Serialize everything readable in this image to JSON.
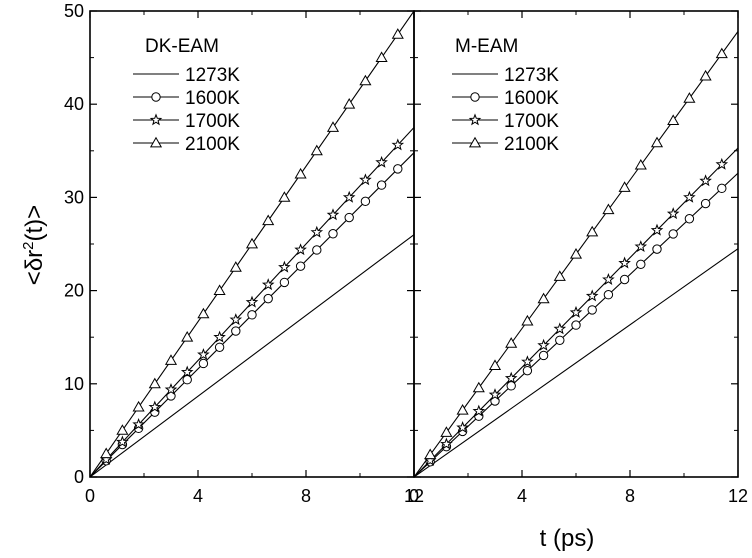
{
  "chart_data": {
    "type": "line",
    "ylabel": "<δr",
    "ylabel_sup": "2",
    "ylabel_tail": "(t)>",
    "xlabel": "t (ps)",
    "ylim": [
      0,
      50
    ],
    "y_ticks": [
      0,
      10,
      20,
      30,
      40,
      50
    ],
    "panels": [
      {
        "title": "DK-EAM",
        "xlim": [
          0,
          12
        ],
        "x_ticks": [
          0,
          4,
          8,
          12
        ],
        "series": [
          {
            "name": "1273K",
            "marker": "none",
            "x": [
              0,
              12
            ],
            "y": [
              0,
              26.0
            ]
          },
          {
            "name": "1600K",
            "marker": "circle",
            "x": [
              0,
              12
            ],
            "y": [
              0,
              34.8
            ]
          },
          {
            "name": "1700K",
            "marker": "star",
            "x": [
              0,
              12
            ],
            "y": [
              0,
              37.5
            ]
          },
          {
            "name": "2100K",
            "marker": "triangle",
            "x": [
              0,
              12
            ],
            "y": [
              0,
              50.0
            ]
          }
        ]
      },
      {
        "title": "M-EAM",
        "xlim": [
          0,
          12
        ],
        "x_ticks": [
          0,
          4,
          8,
          12
        ],
        "series": [
          {
            "name": "1273K",
            "marker": "none",
            "x": [
              0,
              12
            ],
            "y": [
              0,
              24.5
            ]
          },
          {
            "name": "1600K",
            "marker": "circle",
            "x": [
              0,
              12
            ],
            "y": [
              0,
              32.6
            ]
          },
          {
            "name": "1700K",
            "marker": "star",
            "x": [
              0,
              12
            ],
            "y": [
              0,
              35.3
            ]
          },
          {
            "name": "2100K",
            "marker": "triangle",
            "x": [
              0,
              12
            ],
            "y": [
              0,
              47.8
            ]
          }
        ]
      }
    ]
  }
}
